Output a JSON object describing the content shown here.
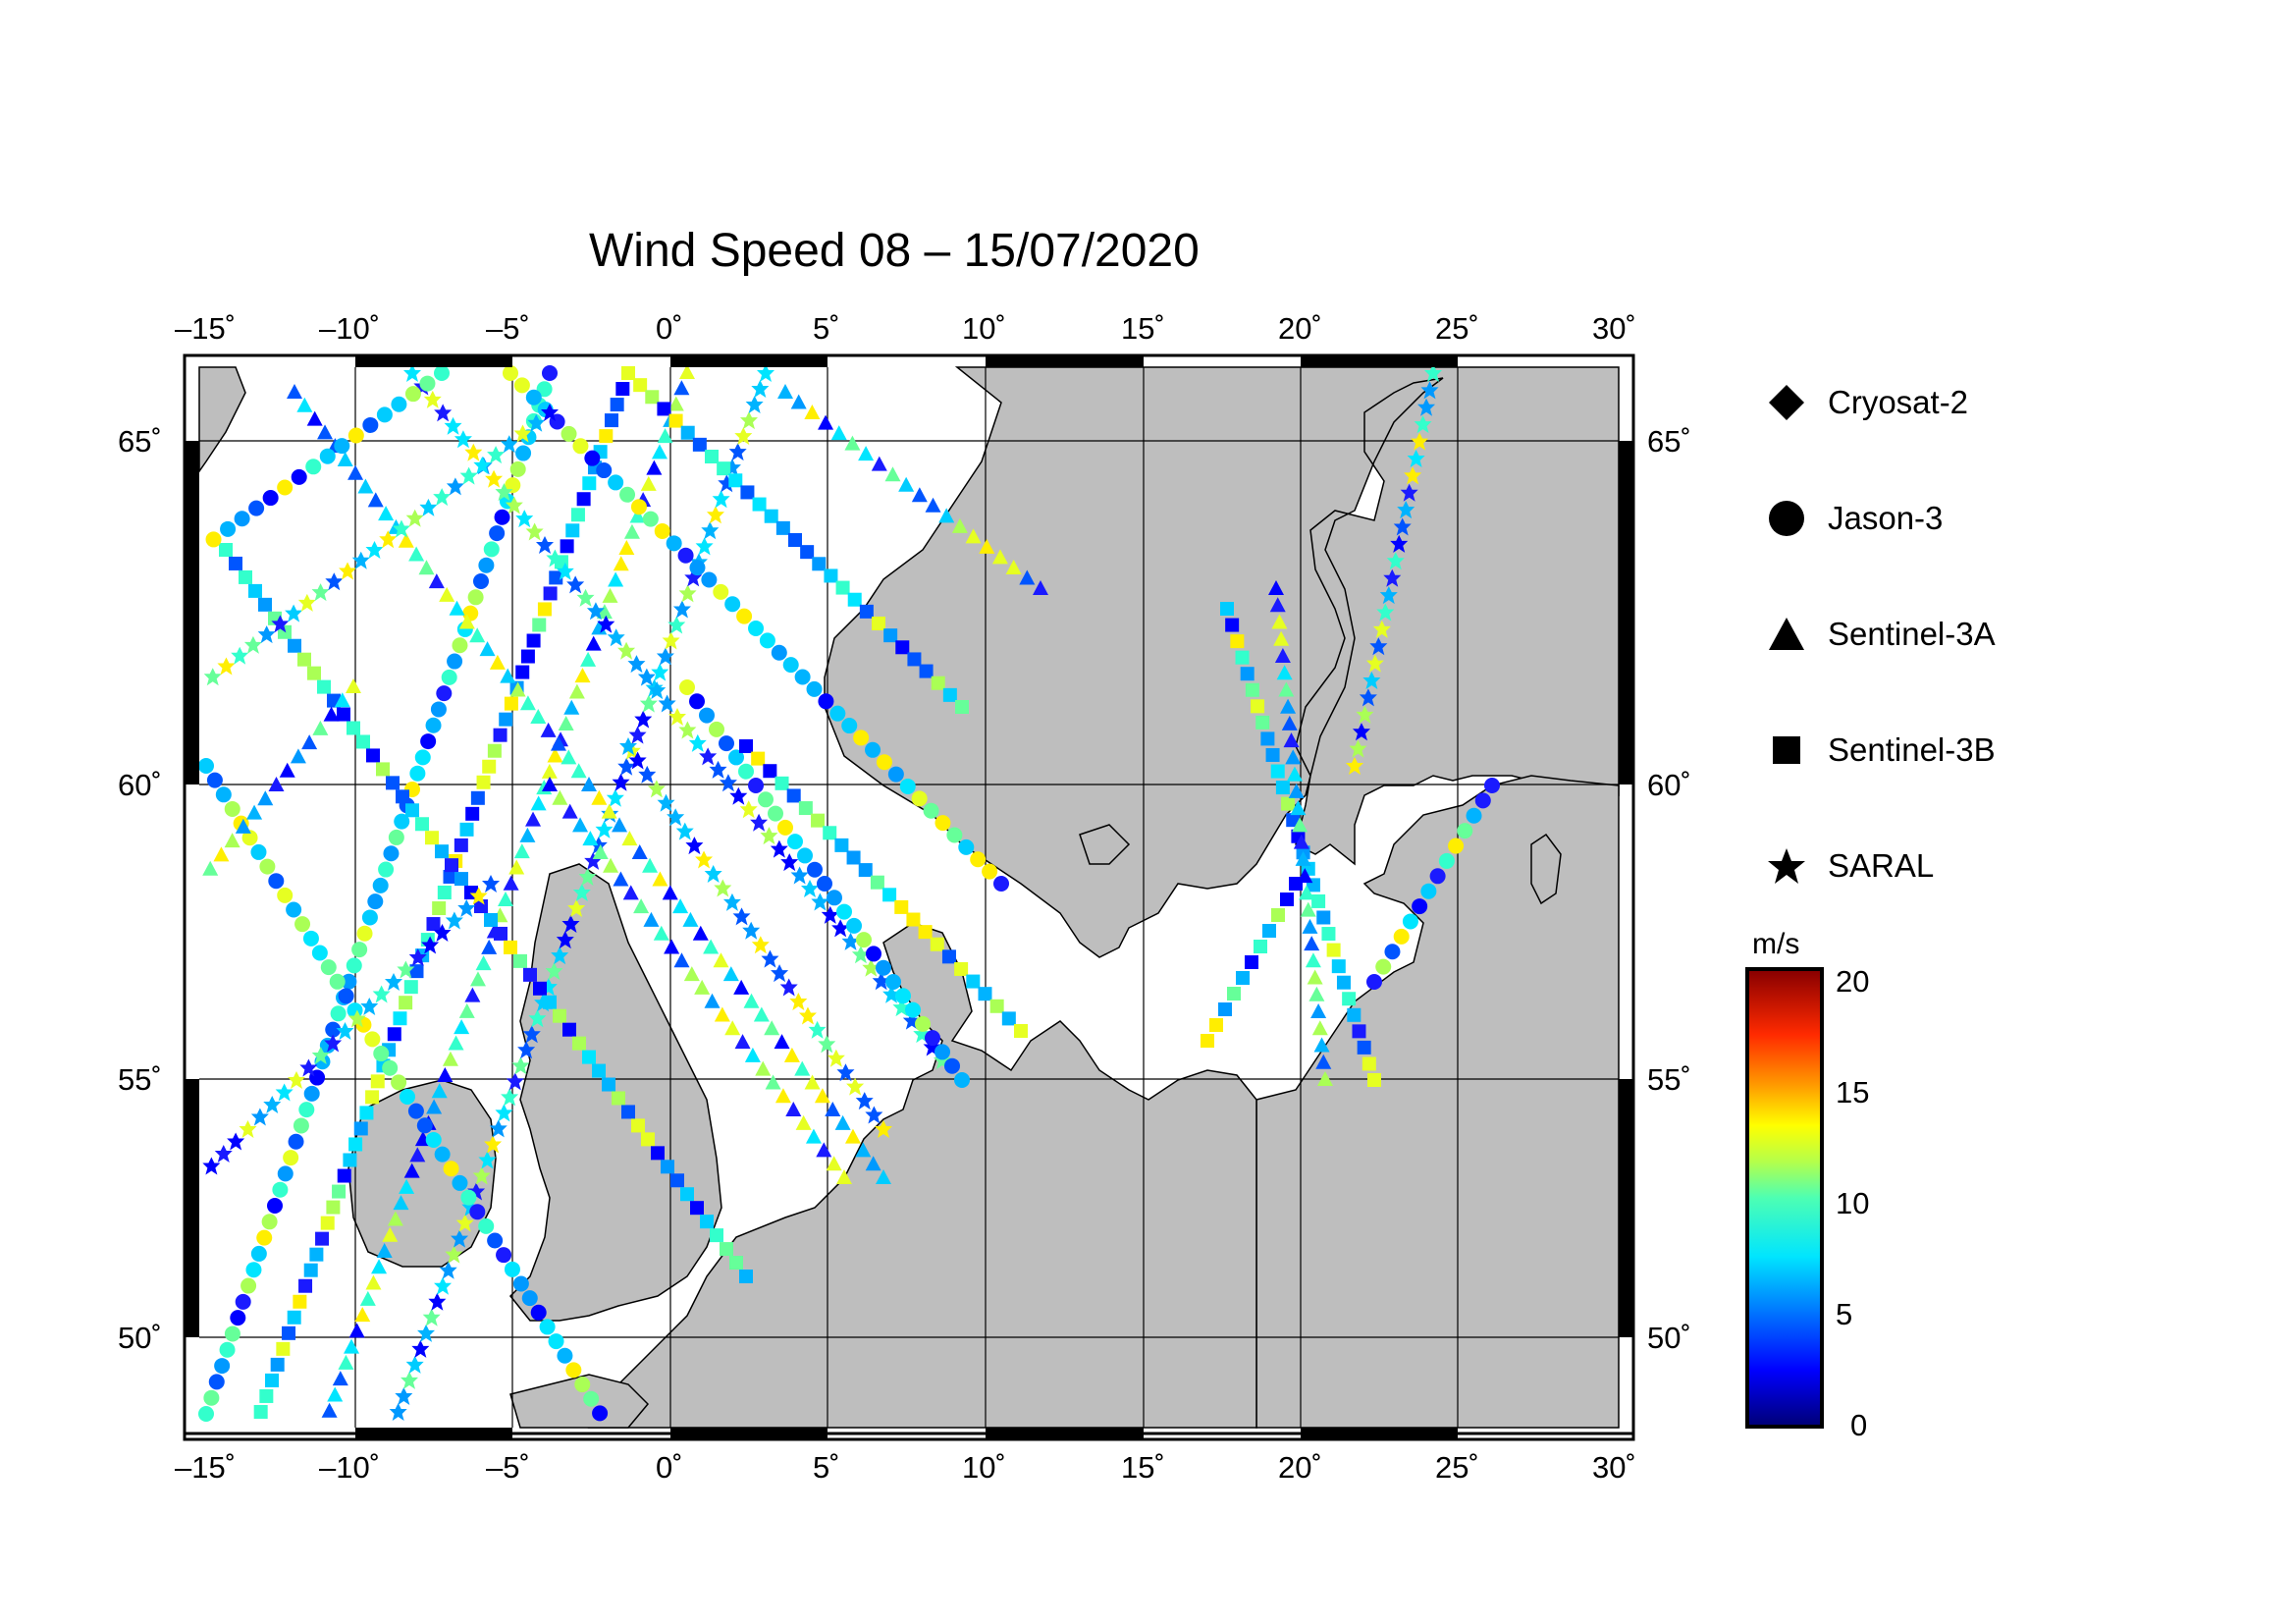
{
  "title": "Wind Speed 08 – 15/07/2020",
  "map": {
    "lon_range": [
      -15,
      30
    ],
    "lat_range": [
      48.5,
      66
    ],
    "lon_ticks": [
      "–15˚",
      "–10˚",
      "–5˚",
      "0˚",
      "5˚",
      "10˚",
      "15˚",
      "20˚",
      "25˚",
      "30˚"
    ],
    "lat_ticks": [
      "50˚",
      "55˚",
      "60˚",
      "65˚"
    ],
    "land_color": "#bebebe",
    "sea_color": "#ffffff"
  },
  "legend": [
    {
      "label": "Cryosat-2",
      "symbol": "diamond-icon"
    },
    {
      "label": "Jason-3",
      "symbol": "circle-icon"
    },
    {
      "label": "Sentinel-3A",
      "symbol": "triangle-icon"
    },
    {
      "label": "Sentinel-3B",
      "symbol": "square-icon"
    },
    {
      "label": "SARAL",
      "symbol": "star-icon"
    }
  ],
  "colorbar": {
    "unit": "m/s",
    "ticks": [
      "20",
      "15",
      "10",
      "5",
      "0"
    ],
    "range": [
      0,
      20
    ]
  }
}
